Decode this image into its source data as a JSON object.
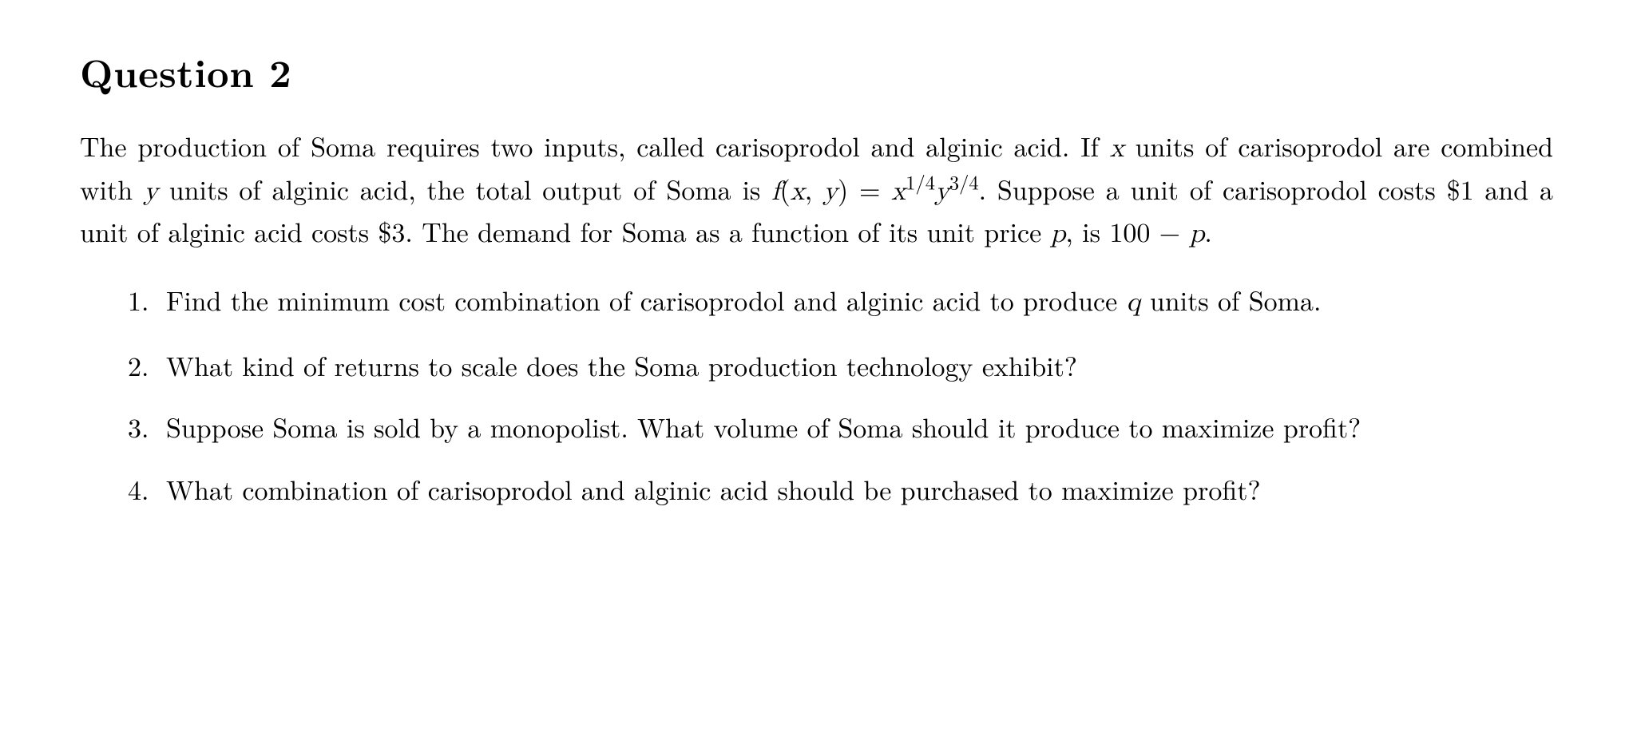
{
  "heading": "Question 2",
  "intro_a": "The production of Soma requires two inputs, called carisoprodol and alginic acid.  If ",
  "intro_b": " units of carisoprodol are combined with ",
  "intro_c": " units of alginic acid, the total output of Soma is ",
  "intro_d": ". Suppose a unit of carisoprodol costs $1 and a unit of alginic acid costs $3. The demand for Soma as a function of its unit price ",
  "intro_e": ", is ",
  "intro_f": ".",
  "var_x": "x",
  "var_y": "y",
  "var_p": "p",
  "var_q": "q",
  "fn_label": "f",
  "fn_open": "(",
  "fn_comma": ", ",
  "fn_close": ")",
  "eq": " = ",
  "exp1_num": "1",
  "exp1_den": "4",
  "exp2_num": "3",
  "exp2_den": "4",
  "demand_100": "100",
  "demand_minus": " − ",
  "items": [
    {
      "num": "1.",
      "pre": "Find the minimum cost combination of carisoprodol and alginic acid to produce ",
      "post": " units of Soma."
    },
    {
      "num": "2.",
      "text": "What kind of returns to scale does the Soma production technology exhibit?"
    },
    {
      "num": "3.",
      "text": "Suppose Soma is sold by a monopolist. What volume of Soma should it produce to maximize profit?"
    },
    {
      "num": "4.",
      "text": "What combination of carisoprodol and alginic acid should be purchased to maximize profit?"
    }
  ]
}
